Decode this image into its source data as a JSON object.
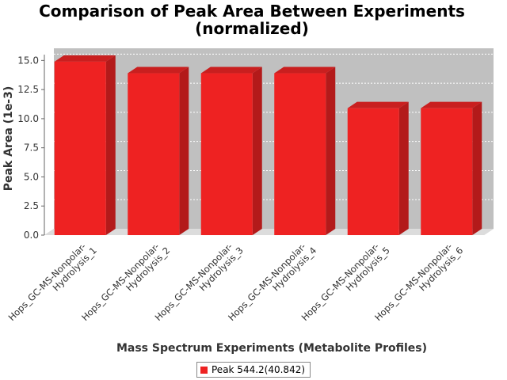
{
  "chart_data": {
    "type": "bar",
    "title_lines": [
      "Comparison of Peak Area Between Experiments",
      "(normalized)"
    ],
    "xlabel": "Mass Spectrum Experiments (Metabolite Profiles)",
    "ylabel": "Peak Area (1e-3)",
    "ylim": [
      0,
      15.5
    ],
    "yticks": [
      "0.0",
      "2.5",
      "5.0",
      "7.5",
      "10.0",
      "12.5",
      "15.0"
    ],
    "grid": true,
    "legend_position": "bottom",
    "categories": [
      [
        "Hops_GC-MS-Nonpolar-",
        "Hydrolysis_1"
      ],
      [
        "Hops_GC-MS-Nonpolar-",
        "Hydrolysis_2"
      ],
      [
        "Hops_GC-MS-Nonpolar-",
        "Hydrolysis_3"
      ],
      [
        "Hops_GC-MS-Nonpolar-",
        "Hydrolysis_4"
      ],
      [
        "Hops_GC-MS-Nonpolar-",
        "Hydrolysis_5"
      ],
      [
        "Hops_GC-MS-Nonpolar-",
        "Hydrolysis_6"
      ]
    ],
    "series": [
      {
        "name": "Peak 544.2(40.842)",
        "values": [
          14.9,
          13.9,
          13.9,
          13.9,
          10.9,
          10.9
        ]
      }
    ],
    "colors": {
      "bar_front": "#ee2222",
      "bar_side": "#b31a1a",
      "bar_top": "#c91f1f",
      "plot_bg": "#c0c0c0",
      "floor": "#dcdcdc"
    }
  }
}
